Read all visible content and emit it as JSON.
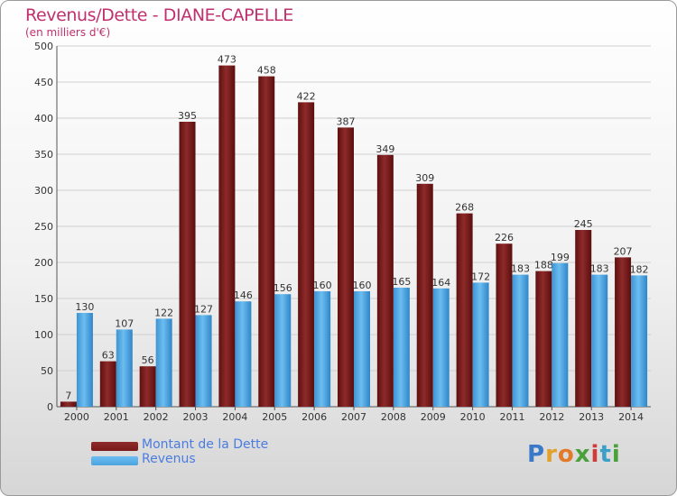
{
  "header": {
    "title": "Revenus/Dette - DIANE-CAPELLE",
    "subtitle": "(en milliers d'€)"
  },
  "legend": {
    "debt_label": "Montant de la Dette",
    "revenue_label": "Revenus"
  },
  "logo": {
    "text": "Proxiti",
    "letters": [
      "P",
      "r",
      "o",
      "x",
      "i",
      "t",
      "i"
    ],
    "colors": [
      "#3a78c8",
      "#e2a12a",
      "#e27a2a",
      "#4aa03a",
      "#d03a3a",
      "#3aa0c8",
      "#4aa03a"
    ]
  },
  "colors": {
    "debt": "#7a1a1a",
    "revenue": "#4aa3df",
    "title": "#c0306e",
    "axis_text": "#333333",
    "grid": "#d0d0d0"
  },
  "chart_data": {
    "type": "bar",
    "title": "Revenus/Dette - DIANE-CAPELLE",
    "ylabel": "(en milliers d'€)",
    "xlabel": "",
    "ylim": [
      0,
      500
    ],
    "yticks": [
      0,
      50,
      100,
      150,
      200,
      250,
      300,
      350,
      400,
      450,
      500
    ],
    "grid": true,
    "legend_position": "bottom-left",
    "categories": [
      "2000",
      "2001",
      "2002",
      "2003",
      "2004",
      "2005",
      "2006",
      "2007",
      "2008",
      "2009",
      "2010",
      "2011",
      "2012",
      "2013",
      "2014"
    ],
    "series": [
      {
        "name": "Montant de la Dette",
        "values": [
          7,
          63,
          56,
          395,
          473,
          458,
          422,
          387,
          349,
          309,
          268,
          226,
          188,
          245,
          207
        ]
      },
      {
        "name": "Revenus",
        "values": [
          130,
          107,
          122,
          127,
          146,
          156,
          160,
          160,
          165,
          164,
          172,
          183,
          199,
          183,
          182
        ]
      }
    ]
  }
}
